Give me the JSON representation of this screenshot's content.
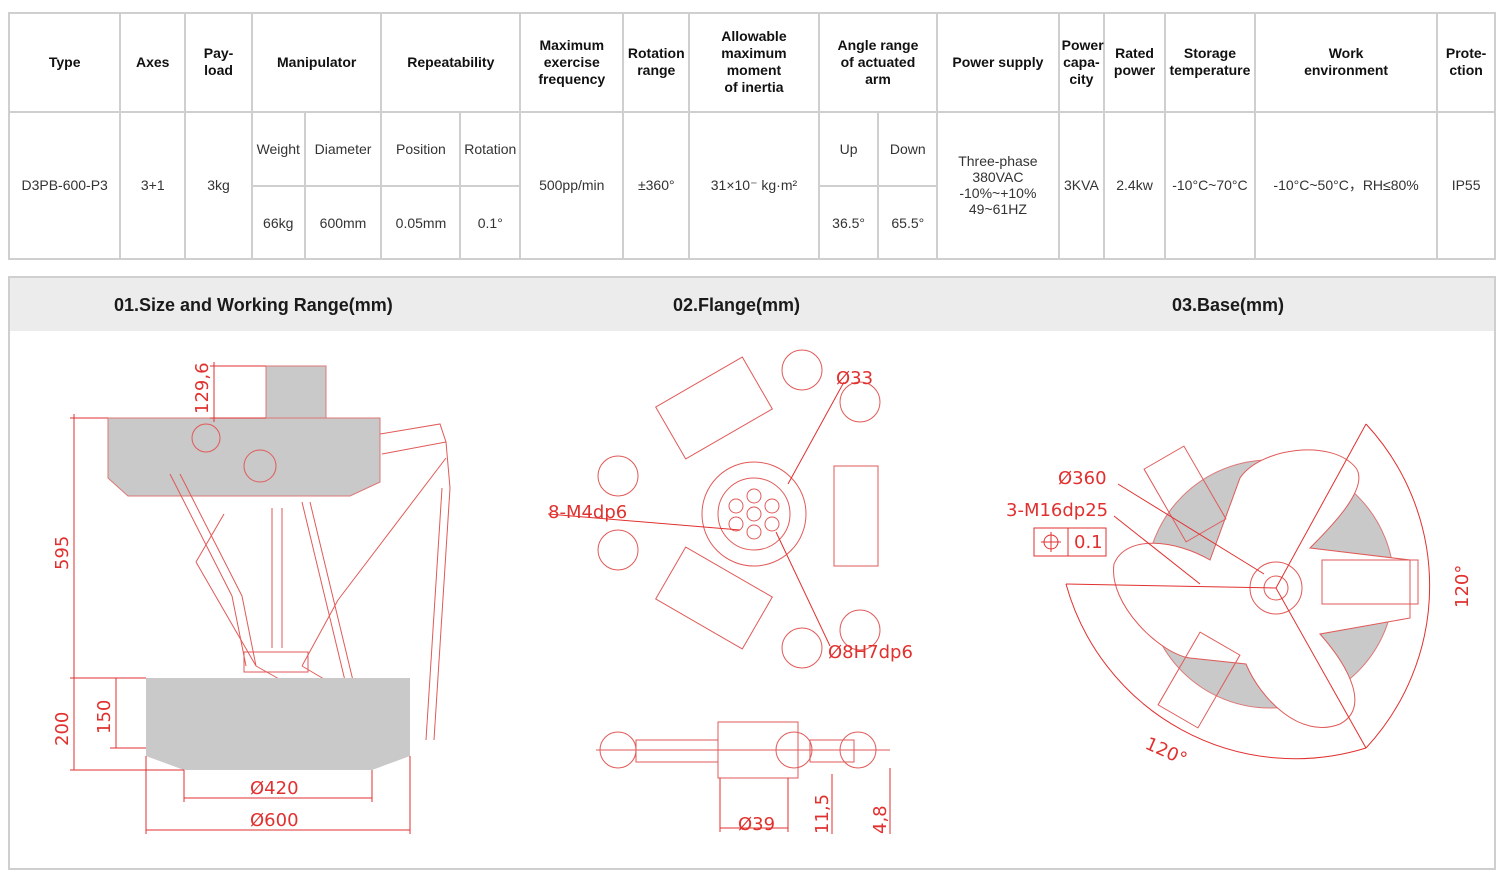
{
  "spec": {
    "headers": {
      "type": "Type",
      "axes": "Axes",
      "payload": "Pay-\nload",
      "manipulator": "Manipulator",
      "repeatability": "Repeatability",
      "frequency": "Maximum\nexercise\nfrequency",
      "rotation_range": "Rotation\nrange",
      "moment": "Allowable\nmaximum\nmoment\nof inertia",
      "angle_range": "Angle range\nof actuated\narm",
      "power_supply": "Power supply",
      "power_capacity": "Power\ncapa-\ncity",
      "rated_power": "Rated\npower",
      "storage_temp": "Storage\ntemperature",
      "work_env": "Work\nenvironment",
      "protection": "Prote-\nction"
    },
    "subheaders": {
      "weight": "Weight",
      "diameter": "Diameter",
      "position": "Position",
      "rotation": "Rotation",
      "up": "Up",
      "down": "Down"
    },
    "values": {
      "type": "D3PB-600-P3",
      "axes": "3+1",
      "payload": "3kg",
      "weight": "66kg",
      "diameter": "600mm",
      "position": "0.05mm",
      "rotation": "0.1°",
      "frequency": "500pp/min",
      "rotation_range": "±360°",
      "moment": "31×10⁻   kg·m²",
      "angle_up": "36.5°",
      "angle_down": "65.5°",
      "power_supply": "Three-phase\n380VAC\n-10%~+10%\n49~61HZ",
      "power_capacity": "3KVA",
      "rated_power": "2.4kw",
      "storage_temp": "-10°C~70°C",
      "work_env": "-10°C~50°C，RH≤80%",
      "protection": "IP55"
    }
  },
  "drawings": {
    "titles": {
      "size": "01.Size and Working Range(mm)",
      "flange": "02.Flange(mm)",
      "base": "03.Base(mm)"
    },
    "size_dims": {
      "top_height": "129,6",
      "height": "595",
      "range_height": "200",
      "range_inner_height": "150",
      "inner_diameter": "Ø420",
      "outer_diameter": "Ø600"
    },
    "flange_dims": {
      "d33": "Ø33",
      "holes": "8-M4dp6",
      "pin": "Ø8H7dp6",
      "d39": "Ø39",
      "h1": "11,5",
      "h2": "4,8"
    },
    "base_dims": {
      "d360": "Ø360",
      "holes": "3-M16dp25",
      "flatness": "0.1",
      "angle_right": "120°",
      "angle_bottom": "120°"
    },
    "colors": {
      "accent": "#e0312f",
      "panel": "#ececec",
      "grid": "#cfcfcf"
    }
  }
}
